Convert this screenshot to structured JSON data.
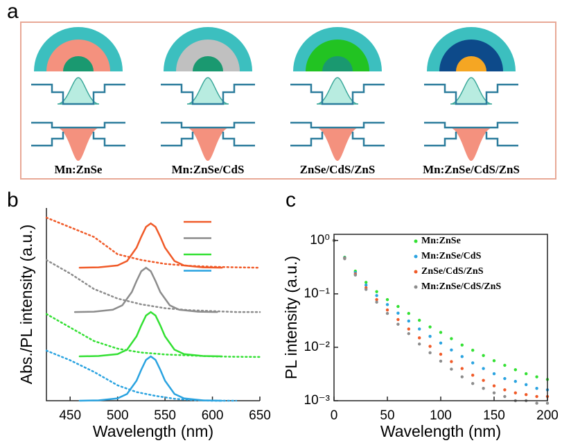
{
  "panel_a": {
    "label": "a",
    "captions": [
      "Mn:ZnSe",
      "Mn:ZnSe/CdS",
      "ZnSe/CdS/ZnS",
      "Mn:ZnSe/CdS/ZnS"
    ]
  },
  "chart_data": [
    {
      "type": "line",
      "label": "b",
      "xlabel": "Wavelength (nm)",
      "ylabel": "Abs./PL intensity (a.u.)",
      "xlim": [
        425,
        650
      ],
      "xticks": [
        450,
        500,
        550,
        600,
        650
      ],
      "ylim": [
        0,
        10
      ],
      "series": [
        {
          "color": "#f05a28",
          "style": "solid",
          "x": [
            460,
            480,
            500,
            510,
            520,
            525,
            530,
            535,
            540,
            545,
            550,
            560,
            570,
            590,
            610
          ],
          "values": [
            6.9,
            6.92,
            7.02,
            7.25,
            7.94,
            8.51,
            9.02,
            9.2,
            9.02,
            8.51,
            7.94,
            7.25,
            7.02,
            6.92,
            6.9
          ]
        },
        {
          "color": "#8c8c8c",
          "style": "solid",
          "x": [
            455,
            475,
            495,
            505,
            515,
            520,
            525,
            530,
            535,
            540,
            545,
            555,
            565,
            585,
            605
          ],
          "values": [
            4.6,
            4.62,
            4.72,
            4.95,
            5.64,
            6.21,
            6.72,
            6.9,
            6.72,
            6.21,
            5.64,
            4.95,
            4.72,
            4.62,
            4.6
          ]
        },
        {
          "color": "#33e033",
          "style": "solid",
          "x": [
            460,
            480,
            500,
            510,
            520,
            525,
            530,
            535,
            540,
            545,
            550,
            560,
            570,
            590,
            610
          ],
          "values": [
            2.3,
            2.32,
            2.42,
            2.65,
            3.34,
            3.91,
            4.42,
            4.6,
            4.42,
            3.91,
            3.34,
            2.65,
            2.42,
            2.32,
            2.3
          ]
        },
        {
          "color": "#2aa3e0",
          "style": "solid",
          "x": [
            460,
            480,
            500,
            510,
            520,
            525,
            530,
            535,
            540,
            545,
            550,
            560,
            570,
            590,
            610
          ],
          "values": [
            0,
            0.02,
            0.12,
            0.35,
            1.04,
            1.61,
            2.12,
            2.3,
            2.12,
            1.61,
            1.04,
            0.35,
            0.12,
            0.02,
            0
          ]
        },
        {
          "color": "#f05a28",
          "style": "dotted",
          "x": [
            425,
            450,
            475,
            500,
            525,
            550,
            575,
            600,
            625,
            650
          ],
          "values": [
            9.5,
            9.0,
            8.5,
            7.6,
            7.3,
            7.1,
            7.0,
            6.95,
            6.92,
            6.9
          ]
        },
        {
          "color": "#8c8c8c",
          "style": "dotted",
          "x": [
            425,
            450,
            475,
            500,
            525,
            550,
            575,
            600,
            625,
            650
          ],
          "values": [
            7.3,
            6.6,
            5.8,
            5.3,
            5.0,
            4.8,
            4.7,
            4.65,
            4.6,
            4.6
          ]
        },
        {
          "color": "#33e033",
          "style": "dotted",
          "x": [
            425,
            450,
            475,
            500,
            525,
            550,
            575,
            600,
            625,
            650
          ],
          "values": [
            4.5,
            3.8,
            3.1,
            2.7,
            2.5,
            2.4,
            2.35,
            2.3,
            2.28,
            2.27
          ]
        },
        {
          "color": "#2aa3e0",
          "style": "dotted",
          "x": [
            425,
            450,
            475,
            500,
            520,
            540,
            560,
            580,
            600,
            625
          ],
          "values": [
            2.6,
            2.1,
            1.5,
            0.8,
            0.45,
            0.25,
            0.1,
            0.03,
            0,
            0
          ]
        }
      ]
    },
    {
      "type": "scatter",
      "label": "c",
      "xlabel": "Wavelength (nm)",
      "ylabel": "PL intensity (a.u.)",
      "ylog": true,
      "xlim": [
        0,
        200
      ],
      "xticks": [
        0,
        50,
        100,
        150,
        200
      ],
      "ylim": [
        0.001,
        1.3
      ],
      "yticks": [
        {
          "value": 1,
          "label": "10⁰"
        },
        {
          "value": 0.1,
          "label": "10⁻¹"
        },
        {
          "value": 0.01,
          "label": "10⁻²"
        },
        {
          "value": 0.001,
          "label": "10⁻³"
        }
      ],
      "x": [
        0,
        10,
        20,
        30,
        40,
        50,
        60,
        70,
        80,
        90,
        100,
        110,
        120,
        130,
        140,
        150,
        160,
        170,
        180,
        190,
        200
      ],
      "series": [
        {
          "name": "Mn:ZnSe",
          "color": "#33e033",
          "values": [
            1.0,
            0.484,
            0.266,
            0.164,
            0.11,
            0.078,
            0.058,
            0.043,
            0.032,
            0.024,
            0.019,
            0.0145,
            0.011,
            0.0088,
            0.007,
            0.0056,
            0.0046,
            0.0038,
            0.0032,
            0.0028,
            0.0025
          ]
        },
        {
          "name": "Mn:ZnSe/CdS",
          "color": "#2aa3e0",
          "values": [
            1.0,
            0.473,
            0.25,
            0.146,
            0.093,
            0.063,
            0.0435,
            0.031,
            0.022,
            0.016,
            0.012,
            0.0089,
            0.0067,
            0.0051,
            0.004,
            0.0032,
            0.0026,
            0.0023,
            0.002,
            0.0017,
            0.0016
          ]
        },
        {
          "name": "ZnSe/CdS/ZnS",
          "color": "#f05a28",
          "values": [
            1.0,
            0.462,
            0.235,
            0.13,
            0.078,
            0.05,
            0.033,
            0.022,
            0.015,
            0.0104,
            0.0074,
            0.0054,
            0.004,
            0.003,
            0.0024,
            0.0019,
            0.0016,
            0.0014,
            0.0013,
            0.0012,
            0.0012
          ]
        },
        {
          "name": "Mn:ZnSe/CdS/ZnS",
          "color": "#8c8c8c",
          "values": [
            1.0,
            0.455,
            0.225,
            0.121,
            0.07,
            0.043,
            0.027,
            0.018,
            0.0115,
            0.0079,
            0.0055,
            0.0039,
            0.0028,
            0.0021,
            0.0017,
            0.0014,
            0.0012,
            0.001,
            0.001,
            0.0009,
            0.0009
          ]
        }
      ]
    }
  ]
}
